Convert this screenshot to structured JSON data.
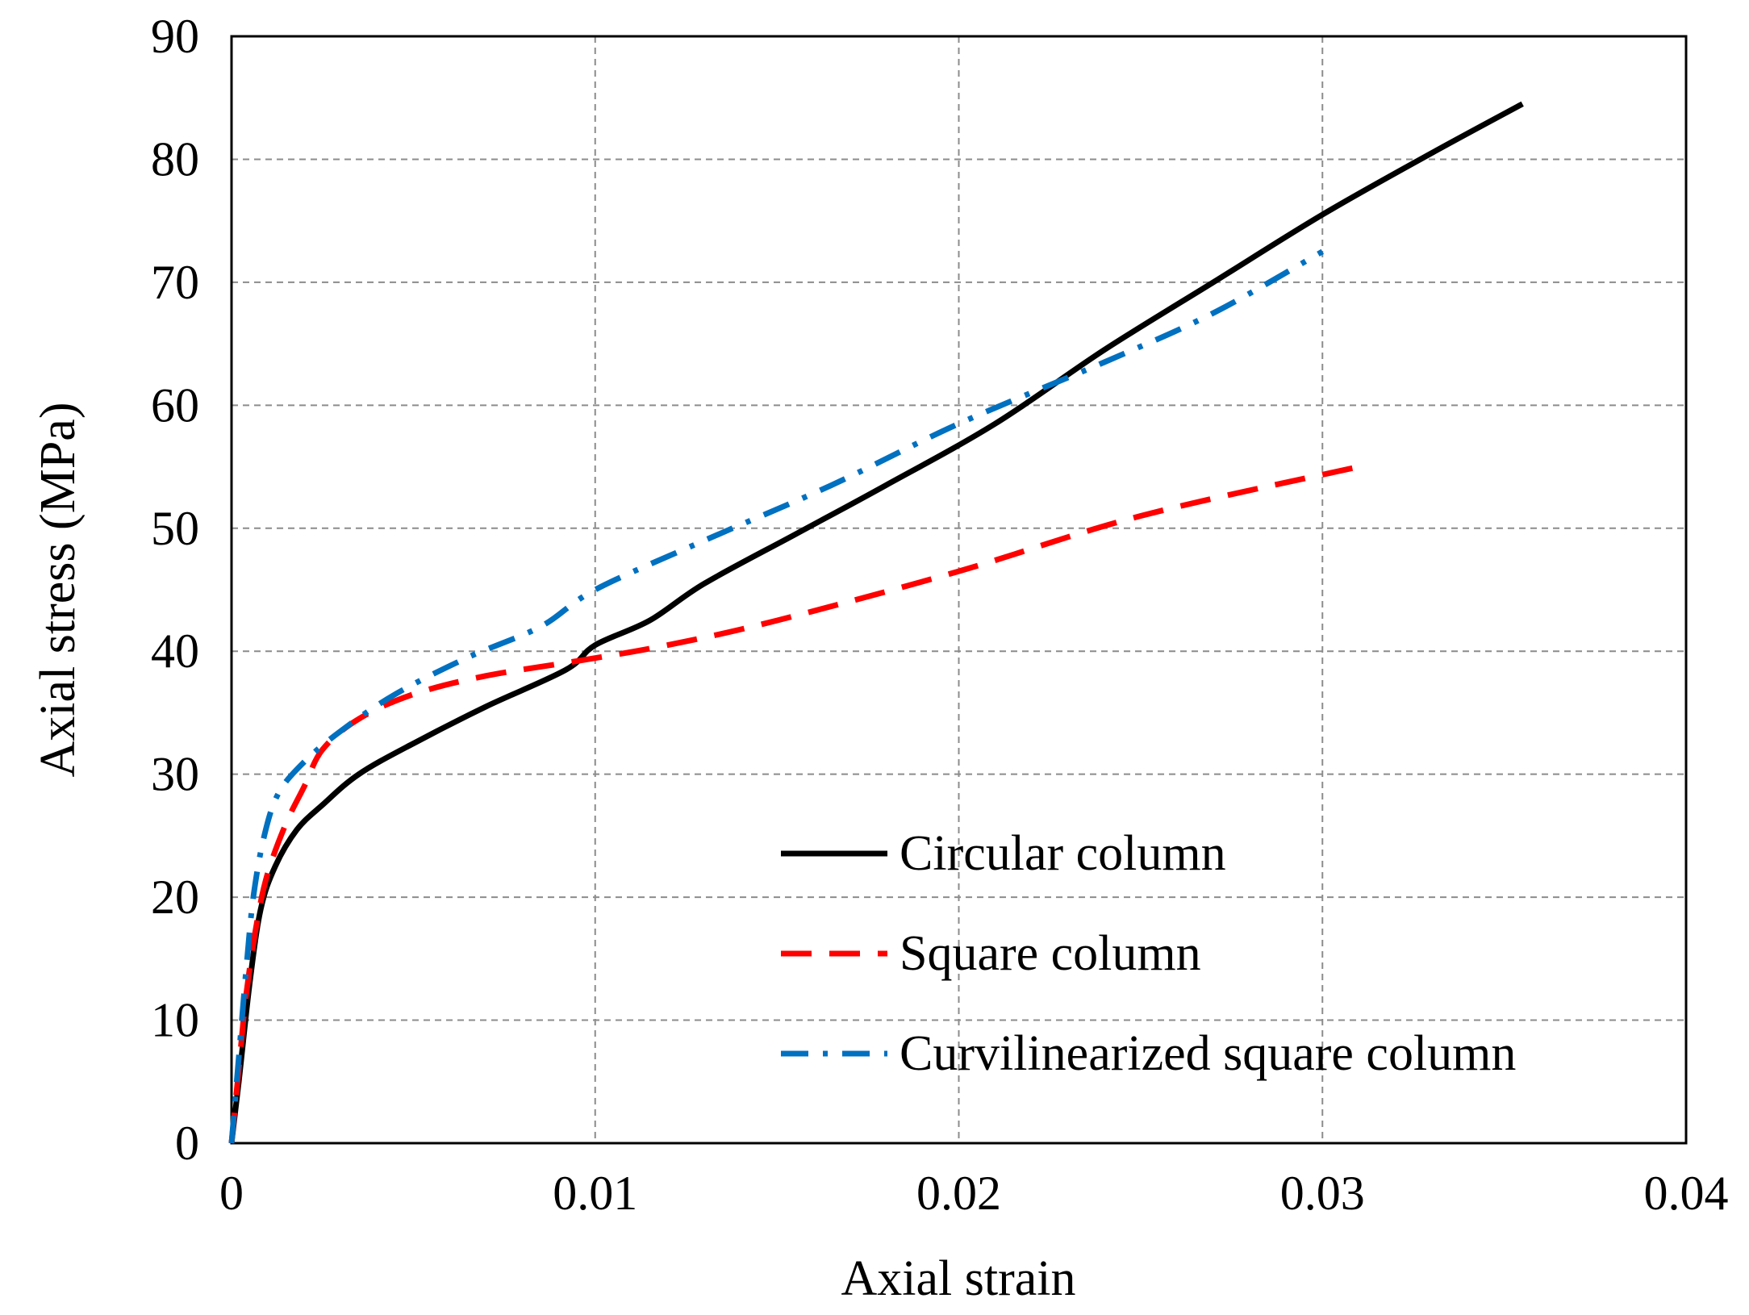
{
  "chart_data": {
    "type": "line",
    "title": "",
    "xlabel": "Axial  strain",
    "ylabel": "Axial stress (MPa)",
    "xlim": [
      0,
      0.04
    ],
    "ylim": [
      0,
      90
    ],
    "grid": true,
    "legend_position": "bottom-right",
    "x_ticks": [
      0,
      0.01,
      0.02,
      0.03,
      0.04
    ],
    "x_tick_labels": [
      "0",
      "0.01",
      "0.02",
      "0.03",
      "0.04"
    ],
    "y_ticks": [
      0,
      10,
      20,
      30,
      40,
      50,
      60,
      70,
      80,
      90
    ],
    "y_tick_labels": [
      "0",
      "10",
      "20",
      "30",
      "40",
      "50",
      "60",
      "70",
      "80",
      "90"
    ],
    "series": [
      {
        "name": "Circular column",
        "color": "#000000",
        "dash": "solid",
        "points": [
          [
            0,
            0
          ],
          [
            0.0002,
            5
          ],
          [
            0.0005,
            13
          ],
          [
            0.0008,
            19
          ],
          [
            0.0012,
            22.5
          ],
          [
            0.0018,
            25.5
          ],
          [
            0.0025,
            27.5
          ],
          [
            0.0035,
            30
          ],
          [
            0.005,
            32.5
          ],
          [
            0.007,
            35.5
          ],
          [
            0.0092,
            38.5
          ],
          [
            0.01,
            40.5
          ],
          [
            0.0115,
            42.5
          ],
          [
            0.013,
            45.5
          ],
          [
            0.0155,
            49.5
          ],
          [
            0.018,
            53.5
          ],
          [
            0.021,
            58.5
          ],
          [
            0.024,
            64.5
          ],
          [
            0.027,
            70
          ],
          [
            0.03,
            75.5
          ],
          [
            0.033,
            80.5
          ],
          [
            0.0355,
            84.5
          ]
        ]
      },
      {
        "name": "Square column",
        "color": "#ff0000",
        "dash": "dashed",
        "points": [
          [
            0,
            0
          ],
          [
            0.0002,
            6
          ],
          [
            0.0004,
            12
          ],
          [
            0.0007,
            18
          ],
          [
            0.001,
            22
          ],
          [
            0.0015,
            26
          ],
          [
            0.002,
            29
          ],
          [
            0.0025,
            32
          ],
          [
            0.0035,
            34.5
          ],
          [
            0.005,
            36.5
          ],
          [
            0.007,
            38
          ],
          [
            0.0095,
            39.2
          ],
          [
            0.012,
            40.5
          ],
          [
            0.015,
            42.5
          ],
          [
            0.02,
            46.5
          ],
          [
            0.025,
            51
          ],
          [
            0.031,
            55
          ]
        ]
      },
      {
        "name": "Curvilinearized square column",
        "color": "#0070c0",
        "dash": "dashdot",
        "points": [
          [
            0,
            0
          ],
          [
            0.0002,
            7
          ],
          [
            0.0004,
            14
          ],
          [
            0.0006,
            20
          ],
          [
            0.0009,
            25
          ],
          [
            0.0013,
            28.5
          ],
          [
            0.002,
            31
          ],
          [
            0.003,
            33.5
          ],
          [
            0.0045,
            36.5
          ],
          [
            0.0065,
            39.5
          ],
          [
            0.0085,
            42
          ],
          [
            0.01,
            45
          ],
          [
            0.013,
            49
          ],
          [
            0.0165,
            53.5
          ],
          [
            0.02,
            58.5
          ],
          [
            0.024,
            63.5
          ],
          [
            0.027,
            67.5
          ],
          [
            0.03,
            72.5
          ]
        ]
      }
    ]
  }
}
